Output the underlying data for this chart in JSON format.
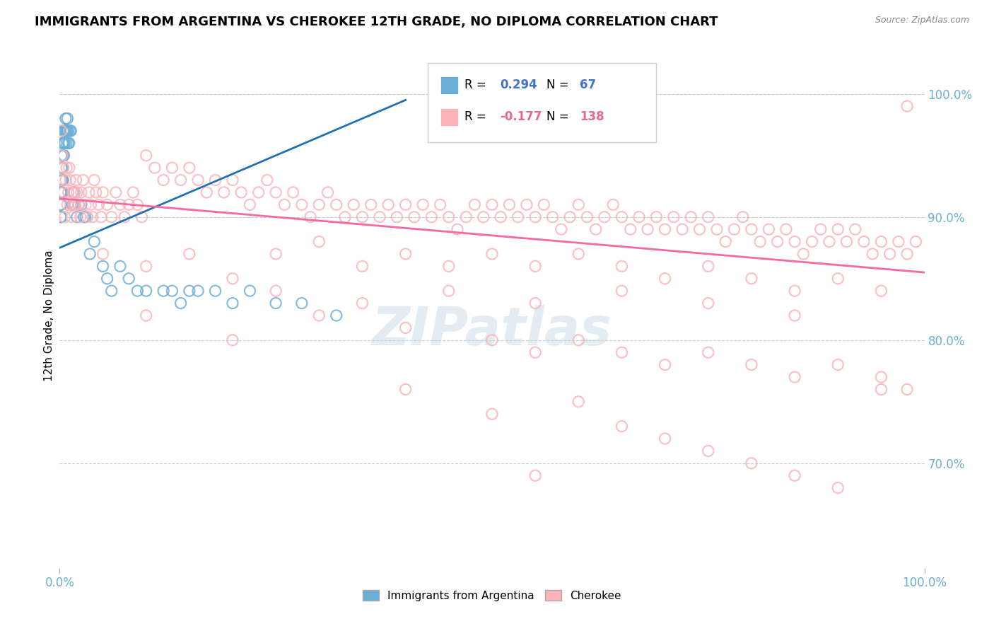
{
  "title": "IMMIGRANTS FROM ARGENTINA VS CHEROKEE 12TH GRADE, NO DIPLOMA CORRELATION CHART",
  "source_text": "Source: ZipAtlas.com",
  "ylabel": "12th Grade, No Diploma",
  "xlim": [
    0.0,
    1.0
  ],
  "ylim_min": 0.615,
  "ylim_max": 1.025,
  "legend_r_argentina": "0.294",
  "legend_n_argentina": "67",
  "legend_r_cherokee": "-0.177",
  "legend_n_cherokee": "138",
  "argentina_color": "#6baed6",
  "cherokee_color": "#fbb4b9",
  "argentina_line_color": "#2171b5",
  "cherokee_line_color": "#f768a1",
  "background_color": "#ffffff",
  "watermark": "ZIPatlas",
  "argentina_points": [
    [
      0.001,
      0.93
    ],
    [
      0.001,
      0.92
    ],
    [
      0.001,
      0.91
    ],
    [
      0.001,
      0.9
    ],
    [
      0.002,
      0.95
    ],
    [
      0.002,
      0.94
    ],
    [
      0.002,
      0.93
    ],
    [
      0.002,
      0.92
    ],
    [
      0.002,
      0.91
    ],
    [
      0.002,
      0.9
    ],
    [
      0.003,
      0.96
    ],
    [
      0.003,
      0.95
    ],
    [
      0.003,
      0.94
    ],
    [
      0.003,
      0.93
    ],
    [
      0.003,
      0.92
    ],
    [
      0.004,
      0.97
    ],
    [
      0.004,
      0.96
    ],
    [
      0.004,
      0.95
    ],
    [
      0.004,
      0.94
    ],
    [
      0.004,
      0.93
    ],
    [
      0.005,
      0.97
    ],
    [
      0.005,
      0.96
    ],
    [
      0.005,
      0.95
    ],
    [
      0.006,
      0.97
    ],
    [
      0.006,
      0.96
    ],
    [
      0.007,
      0.98
    ],
    [
      0.007,
      0.97
    ],
    [
      0.008,
      0.97
    ],
    [
      0.008,
      0.96
    ],
    [
      0.009,
      0.98
    ],
    [
      0.009,
      0.97
    ],
    [
      0.01,
      0.97
    ],
    [
      0.01,
      0.96
    ],
    [
      0.011,
      0.96
    ],
    [
      0.012,
      0.97
    ],
    [
      0.013,
      0.97
    ],
    [
      0.015,
      0.92
    ],
    [
      0.015,
      0.91
    ],
    [
      0.016,
      0.91
    ],
    [
      0.017,
      0.92
    ],
    [
      0.018,
      0.91
    ],
    [
      0.02,
      0.9
    ],
    [
      0.022,
      0.91
    ],
    [
      0.025,
      0.91
    ],
    [
      0.028,
      0.9
    ],
    [
      0.03,
      0.9
    ],
    [
      0.035,
      0.87
    ],
    [
      0.04,
      0.88
    ],
    [
      0.05,
      0.86
    ],
    [
      0.055,
      0.85
    ],
    [
      0.06,
      0.84
    ],
    [
      0.07,
      0.86
    ],
    [
      0.08,
      0.85
    ],
    [
      0.09,
      0.84
    ],
    [
      0.1,
      0.84
    ],
    [
      0.12,
      0.84
    ],
    [
      0.13,
      0.84
    ],
    [
      0.14,
      0.83
    ],
    [
      0.15,
      0.84
    ],
    [
      0.16,
      0.84
    ],
    [
      0.18,
      0.84
    ],
    [
      0.2,
      0.83
    ],
    [
      0.22,
      0.84
    ],
    [
      0.25,
      0.83
    ],
    [
      0.28,
      0.83
    ],
    [
      0.32,
      0.82
    ]
  ],
  "cherokee_points": [
    [
      0.001,
      0.93
    ],
    [
      0.002,
      0.97
    ],
    [
      0.003,
      0.95
    ],
    [
      0.004,
      0.94
    ],
    [
      0.005,
      0.92
    ],
    [
      0.006,
      0.9
    ],
    [
      0.007,
      0.93
    ],
    [
      0.008,
      0.94
    ],
    [
      0.009,
      0.91
    ],
    [
      0.01,
      0.92
    ],
    [
      0.011,
      0.94
    ],
    [
      0.012,
      0.93
    ],
    [
      0.013,
      0.91
    ],
    [
      0.014,
      0.9
    ],
    [
      0.015,
      0.92
    ],
    [
      0.016,
      0.91
    ],
    [
      0.017,
      0.92
    ],
    [
      0.018,
      0.91
    ],
    [
      0.019,
      0.93
    ],
    [
      0.02,
      0.92
    ],
    [
      0.022,
      0.91
    ],
    [
      0.024,
      0.9
    ],
    [
      0.025,
      0.92
    ],
    [
      0.027,
      0.93
    ],
    [
      0.03,
      0.91
    ],
    [
      0.032,
      0.9
    ],
    [
      0.034,
      0.92
    ],
    [
      0.036,
      0.91
    ],
    [
      0.038,
      0.9
    ],
    [
      0.04,
      0.93
    ],
    [
      0.042,
      0.92
    ],
    [
      0.045,
      0.91
    ],
    [
      0.048,
      0.9
    ],
    [
      0.05,
      0.92
    ],
    [
      0.055,
      0.91
    ],
    [
      0.06,
      0.9
    ],
    [
      0.065,
      0.92
    ],
    [
      0.07,
      0.91
    ],
    [
      0.075,
      0.9
    ],
    [
      0.08,
      0.91
    ],
    [
      0.085,
      0.92
    ],
    [
      0.09,
      0.91
    ],
    [
      0.095,
      0.9
    ],
    [
      0.1,
      0.95
    ],
    [
      0.11,
      0.94
    ],
    [
      0.12,
      0.93
    ],
    [
      0.13,
      0.94
    ],
    [
      0.14,
      0.93
    ],
    [
      0.15,
      0.94
    ],
    [
      0.16,
      0.93
    ],
    [
      0.17,
      0.92
    ],
    [
      0.18,
      0.93
    ],
    [
      0.19,
      0.92
    ],
    [
      0.2,
      0.93
    ],
    [
      0.21,
      0.92
    ],
    [
      0.22,
      0.91
    ],
    [
      0.23,
      0.92
    ],
    [
      0.24,
      0.93
    ],
    [
      0.25,
      0.92
    ],
    [
      0.26,
      0.91
    ],
    [
      0.27,
      0.92
    ],
    [
      0.28,
      0.91
    ],
    [
      0.29,
      0.9
    ],
    [
      0.3,
      0.91
    ],
    [
      0.31,
      0.92
    ],
    [
      0.32,
      0.91
    ],
    [
      0.33,
      0.9
    ],
    [
      0.34,
      0.91
    ],
    [
      0.35,
      0.9
    ],
    [
      0.36,
      0.91
    ],
    [
      0.37,
      0.9
    ],
    [
      0.38,
      0.91
    ],
    [
      0.39,
      0.9
    ],
    [
      0.4,
      0.91
    ],
    [
      0.41,
      0.9
    ],
    [
      0.42,
      0.91
    ],
    [
      0.43,
      0.9
    ],
    [
      0.44,
      0.91
    ],
    [
      0.45,
      0.9
    ],
    [
      0.46,
      0.89
    ],
    [
      0.47,
      0.9
    ],
    [
      0.48,
      0.91
    ],
    [
      0.49,
      0.9
    ],
    [
      0.5,
      0.91
    ],
    [
      0.51,
      0.9
    ],
    [
      0.52,
      0.91
    ],
    [
      0.53,
      0.9
    ],
    [
      0.54,
      0.91
    ],
    [
      0.55,
      0.9
    ],
    [
      0.56,
      0.91
    ],
    [
      0.57,
      0.9
    ],
    [
      0.58,
      0.89
    ],
    [
      0.59,
      0.9
    ],
    [
      0.6,
      0.91
    ],
    [
      0.61,
      0.9
    ],
    [
      0.62,
      0.89
    ],
    [
      0.63,
      0.9
    ],
    [
      0.64,
      0.91
    ],
    [
      0.65,
      0.9
    ],
    [
      0.66,
      0.89
    ],
    [
      0.67,
      0.9
    ],
    [
      0.68,
      0.89
    ],
    [
      0.69,
      0.9
    ],
    [
      0.7,
      0.89
    ],
    [
      0.71,
      0.9
    ],
    [
      0.72,
      0.89
    ],
    [
      0.73,
      0.9
    ],
    [
      0.74,
      0.89
    ],
    [
      0.75,
      0.9
    ],
    [
      0.76,
      0.89
    ],
    [
      0.77,
      0.88
    ],
    [
      0.78,
      0.89
    ],
    [
      0.79,
      0.9
    ],
    [
      0.8,
      0.89
    ],
    [
      0.81,
      0.88
    ],
    [
      0.82,
      0.89
    ],
    [
      0.83,
      0.88
    ],
    [
      0.84,
      0.89
    ],
    [
      0.85,
      0.88
    ],
    [
      0.86,
      0.87
    ],
    [
      0.87,
      0.88
    ],
    [
      0.88,
      0.89
    ],
    [
      0.89,
      0.88
    ],
    [
      0.9,
      0.89
    ],
    [
      0.91,
      0.88
    ],
    [
      0.92,
      0.89
    ],
    [
      0.93,
      0.88
    ],
    [
      0.94,
      0.87
    ],
    [
      0.95,
      0.88
    ],
    [
      0.96,
      0.87
    ],
    [
      0.97,
      0.88
    ],
    [
      0.98,
      0.87
    ],
    [
      0.99,
      0.88
    ],
    [
      0.05,
      0.87
    ],
    [
      0.1,
      0.86
    ],
    [
      0.15,
      0.87
    ],
    [
      0.2,
      0.85
    ],
    [
      0.25,
      0.87
    ],
    [
      0.3,
      0.88
    ],
    [
      0.35,
      0.86
    ],
    [
      0.4,
      0.87
    ],
    [
      0.45,
      0.86
    ],
    [
      0.5,
      0.87
    ],
    [
      0.55,
      0.86
    ],
    [
      0.6,
      0.87
    ],
    [
      0.65,
      0.86
    ],
    [
      0.7,
      0.85
    ],
    [
      0.75,
      0.86
    ],
    [
      0.8,
      0.85
    ],
    [
      0.85,
      0.84
    ],
    [
      0.9,
      0.85
    ],
    [
      0.95,
      0.84
    ],
    [
      0.98,
      0.99
    ],
    [
      0.1,
      0.82
    ],
    [
      0.2,
      0.8
    ],
    [
      0.3,
      0.82
    ],
    [
      0.4,
      0.81
    ],
    [
      0.5,
      0.8
    ],
    [
      0.55,
      0.79
    ],
    [
      0.6,
      0.8
    ],
    [
      0.65,
      0.79
    ],
    [
      0.7,
      0.78
    ],
    [
      0.75,
      0.79
    ],
    [
      0.8,
      0.78
    ],
    [
      0.85,
      0.77
    ],
    [
      0.9,
      0.78
    ],
    [
      0.95,
      0.77
    ],
    [
      0.25,
      0.84
    ],
    [
      0.35,
      0.83
    ],
    [
      0.45,
      0.84
    ],
    [
      0.55,
      0.83
    ],
    [
      0.65,
      0.84
    ],
    [
      0.75,
      0.83
    ],
    [
      0.85,
      0.82
    ],
    [
      0.4,
      0.76
    ],
    [
      0.5,
      0.74
    ],
    [
      0.55,
      0.69
    ],
    [
      0.6,
      0.75
    ],
    [
      0.65,
      0.73
    ],
    [
      0.7,
      0.72
    ],
    [
      0.75,
      0.71
    ],
    [
      0.8,
      0.7
    ],
    [
      0.85,
      0.69
    ],
    [
      0.9,
      0.68
    ],
    [
      0.95,
      0.76
    ],
    [
      0.98,
      0.76
    ]
  ]
}
